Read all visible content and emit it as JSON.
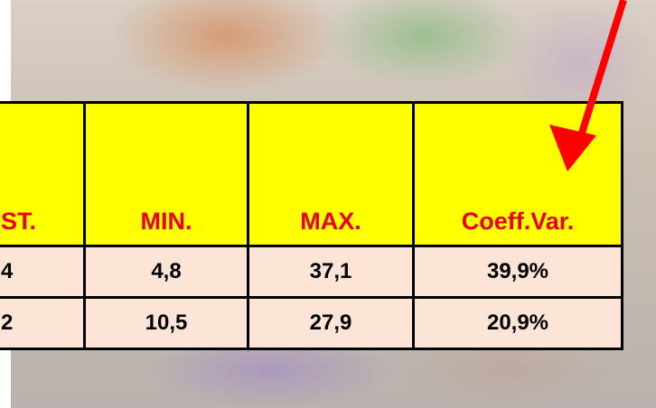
{
  "table": {
    "header": [
      "ST.",
      "MIN.",
      "MAX.",
      "Coeff.Var."
    ],
    "rows": [
      [
        "4",
        "4,8",
        "37,1",
        "39,9%"
      ],
      [
        "2",
        "10,5",
        "27,9",
        "20,9%"
      ]
    ]
  }
}
